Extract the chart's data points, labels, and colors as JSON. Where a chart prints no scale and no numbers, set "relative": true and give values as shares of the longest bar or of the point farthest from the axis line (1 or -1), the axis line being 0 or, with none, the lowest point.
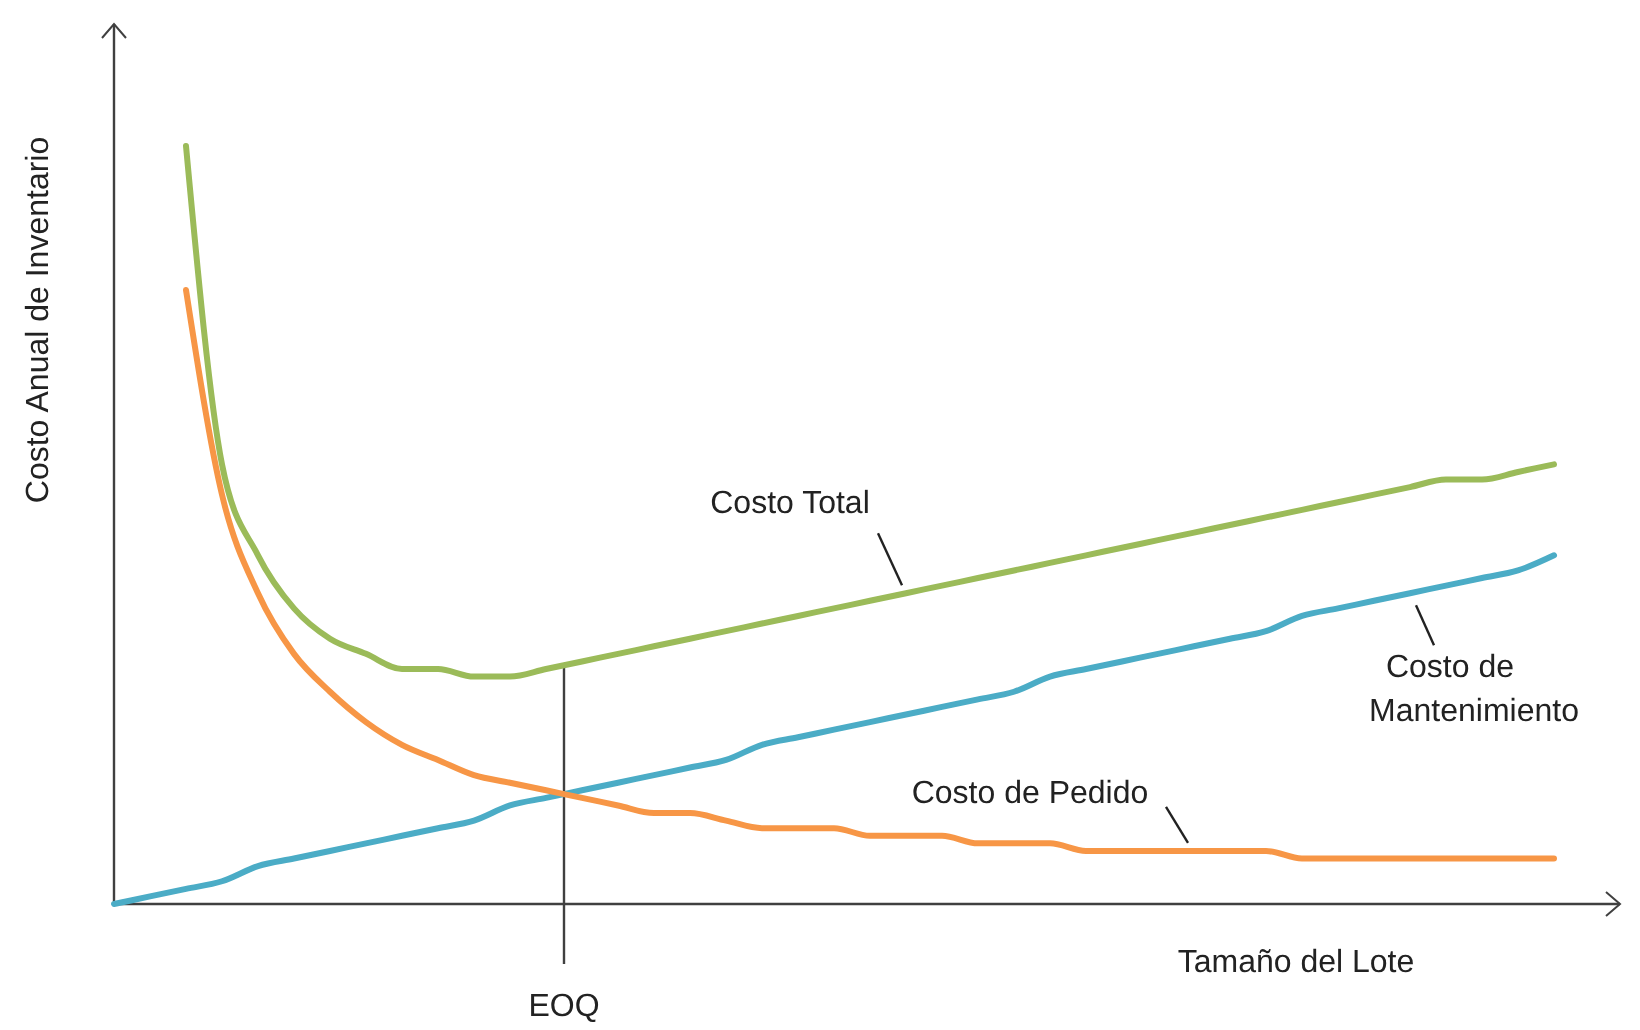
{
  "chart_data": {
    "type": "line",
    "relative": true,
    "xlabel": "Tamaño del Lote",
    "ylabel": "Costo Anual de Inventario",
    "categories": [
      null,
      null,
      null,
      null,
      null,
      null,
      null,
      null,
      null,
      null,
      null,
      null,
      null,
      null,
      null,
      null,
      null,
      null,
      null,
      null,
      null,
      null,
      null,
      null,
      null,
      null,
      null,
      null,
      null,
      null,
      null,
      null,
      null,
      null,
      null,
      null,
      null,
      null,
      null,
      null,
      null
    ],
    "annotations": [
      "EOQ"
    ],
    "line_style": "solid",
    "series": [
      {
        "name": "Costo de Mantenimiento",
        "color": "#4bacc6",
        "values": [
          0,
          0.01,
          0.02,
          0.03,
          0.05,
          0.06,
          0.07,
          0.08,
          0.09,
          0.1,
          0.11,
          0.13,
          0.14,
          0.15,
          0.16,
          0.17,
          0.18,
          0.19,
          0.21,
          0.22,
          0.23,
          0.24,
          0.25,
          0.26,
          0.27,
          0.28,
          0.3,
          0.31,
          0.32,
          0.33,
          0.34,
          0.35,
          0.36,
          0.38,
          0.39,
          0.4,
          0.41,
          0.42,
          0.43,
          0.44,
          0.46
        ]
      },
      {
        "name": "Costo de Pedido",
        "color": "#f79646",
        "values": [
          null,
          null,
          0.81,
          0.54,
          0.41,
          0.33,
          0.28,
          0.24,
          0.21,
          0.19,
          0.17,
          0.16,
          0.15,
          0.14,
          0.13,
          0.12,
          0.12,
          0.11,
          0.1,
          0.1,
          0.1,
          0.09,
          0.09,
          0.09,
          0.08,
          0.08,
          0.08,
          0.07,
          0.07,
          0.07,
          0.07,
          0.07,
          0.07,
          0.06,
          0.06,
          0.06,
          0.06,
          0.06,
          0.06,
          0.06,
          0.06
        ]
      },
      {
        "name": "Costo Total",
        "color": "#9bbb59",
        "values": [
          null,
          null,
          1,
          0.58,
          0.46,
          0.39,
          0.35,
          0.33,
          0.31,
          0.31,
          0.3,
          0.3,
          0.31,
          0.32,
          0.33,
          0.34,
          0.35,
          0.36,
          0.37,
          0.38,
          0.39,
          0.4,
          0.41,
          0.42,
          0.43,
          0.44,
          0.45,
          0.46,
          0.47,
          0.48,
          0.49,
          0.5,
          0.51,
          0.52,
          0.53,
          0.54,
          0.55,
          0.56,
          0.56,
          0.57,
          0.58
        ]
      }
    ]
  }
}
